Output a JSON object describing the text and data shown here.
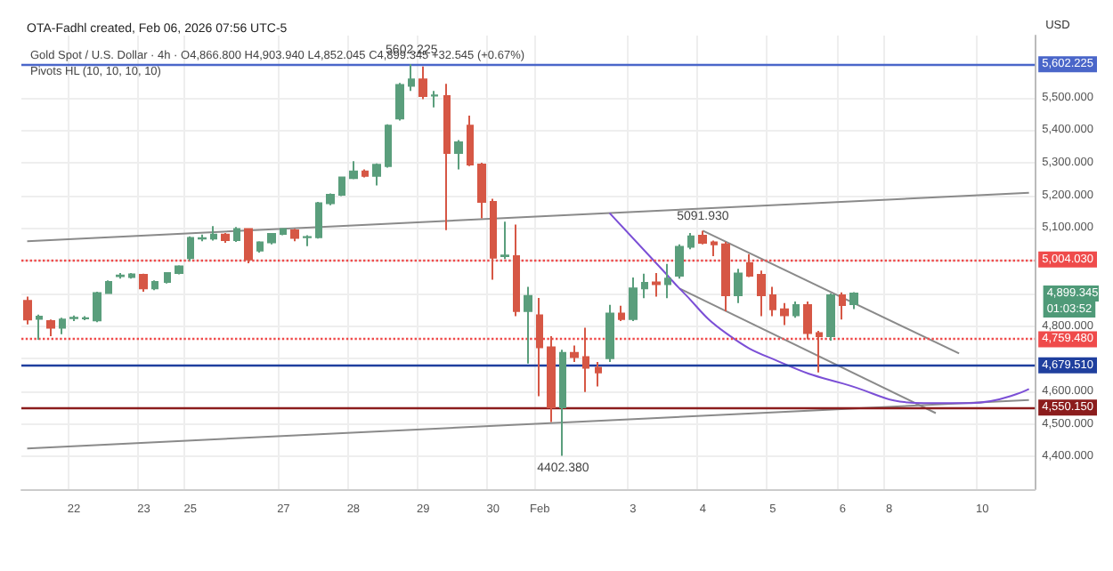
{
  "chart_data": {
    "type": "candlestick",
    "title": "OTA-Fadhl created, Feb 06, 2026 07:56 UTC-5",
    "subtitle": "Gold Spot / U.S. Dollar · 4h · O4,866.800 H4,903.940 L4,852.045 C4,899.345 +32.545 (+0.67%)",
    "ylabel": "USD",
    "annotations": [
      "Pivots HL (10, 10, 10, 10)",
      {
        "text": "5602.225",
        "y": 5602.225
      },
      {
        "text": "5091.930",
        "y": 5091.93
      },
      {
        "text": "4402.380",
        "y": 4402.38
      },
      "4,899.345",
      "01:03:52"
    ],
    "categories": [
      null,
      null,
      null,
      null,
      "22",
      null,
      null,
      null,
      null,
      null,
      "23",
      null,
      null,
      null,
      "25",
      null,
      null,
      null,
      null,
      null,
      null,
      null,
      "27",
      null,
      null,
      null,
      null,
      null,
      "28",
      null,
      null,
      null,
      null,
      null,
      "29",
      null,
      null,
      null,
      null,
      null,
      "30",
      null,
      null,
      null,
      "Feb",
      null,
      null,
      null,
      null,
      null,
      null,
      null,
      "3",
      null,
      null,
      null,
      null,
      null,
      "4",
      null,
      null,
      null,
      null,
      null,
      "5",
      null,
      null,
      null,
      null,
      null,
      "6",
      null,
      null,
      null,
      "8",
      null,
      null,
      null,
      null,
      null,
      null,
      null,
      "10",
      null,
      null,
      null,
      null
    ],
    "ylim": [
      4300,
      5690
    ],
    "yticks": [
      {
        "value": 4400,
        "label": "4,400.000"
      },
      {
        "value": 4500,
        "label": "4,500.000"
      },
      {
        "value": 4600,
        "label": "4,600.000"
      },
      {
        "value": 4700,
        "label": null
      },
      {
        "value": 4800,
        "label": "4,800.000"
      },
      {
        "value": 4900,
        "label": null
      },
      {
        "value": 5000,
        "label": null
      },
      {
        "value": 5100,
        "label": "5,100.000"
      },
      {
        "value": 5200,
        "label": "5,200.000"
      },
      {
        "value": 5300,
        "label": "5,300.000"
      },
      {
        "value": 5400,
        "label": "5,400.000"
      },
      {
        "value": 5500,
        "label": "5,500.000"
      },
      {
        "value": 5600,
        "label": null
      }
    ],
    "grid": true,
    "series": [
      {
        "colors": [
          "#d65745",
          "#5a9e7c",
          "#d65745",
          "#5a9e7c",
          "#5a9e7c",
          "#5a9e7c",
          "#5a9e7c",
          "#5a9e7c",
          "#5a9e7c",
          "#5a9e7c",
          "#d65745",
          "#5a9e7c",
          "#5a9e7c",
          "#5a9e7c",
          "#5a9e7c",
          "#5a9e7c",
          "#5a9e7c",
          "#d65745",
          "#5a9e7c",
          "#d65745",
          "#5a9e7c",
          "#5a9e7c",
          "#5a9e7c",
          "#d65745",
          "#5a9e7c",
          "#5a9e7c",
          "#5a9e7c",
          "#5a9e7c",
          "#5a9e7c",
          "#d65745",
          "#5a9e7c",
          "#5a9e7c",
          "#5a9e7c",
          "#5a9e7c",
          "#d65745",
          "#5a9e7c",
          "#d65745",
          "#5a9e7c",
          "#d65745",
          "#d65745",
          "#d65745",
          "#5a9e7c",
          "#d65745",
          "#5a9e7c",
          "#d65745",
          "#d65745",
          "#5a9e7c",
          "#d65745",
          "#d65745",
          "#d65745",
          "#5a9e7c",
          "#d65745",
          "#5a9e7c",
          "#5a9e7c",
          "#d65745",
          "#5a9e7c",
          "#5a9e7c",
          "#5a9e7c",
          "#d65745",
          "#d65745",
          "#d65745",
          "#5a9e7c",
          "#d65745",
          "#d65745",
          "#d65745",
          "#d65745",
          "#5a9e7c",
          "#d65745",
          "#d65745",
          "#5a9e7c",
          "#d65745",
          "#5a9e7c",
          null,
          null,
          null,
          null,
          null,
          null,
          null,
          null,
          null,
          null,
          null,
          null,
          null,
          null,
          null
        ],
        "ohlc": [
          [
            4877,
            4890,
            4805,
            4820
          ],
          [
            4822,
            4835,
            4758,
            4829
          ],
          [
            4815,
            4820,
            4769,
            4795
          ],
          [
            4795,
            4825,
            4775,
            4820
          ],
          [
            4824,
            4832,
            4815,
            4825
          ],
          [
            4823,
            4830,
            4818,
            4824
          ],
          [
            4817,
            4905,
            4812,
            4901
          ],
          [
            4901,
            4940,
            4898,
            4935
          ],
          [
            4953,
            4962,
            4945,
            4955
          ],
          [
            4950,
            4962,
            4945,
            4958
          ],
          [
            4957,
            4960,
            4905,
            4915
          ],
          [
            4915,
            4940,
            4910,
            4935
          ],
          [
            4935,
            4965,
            4930,
            4962
          ],
          [
            4962,
            4986,
            4958,
            4983
          ],
          [
            5008,
            5075,
            5000,
            5070
          ],
          [
            5068,
            5080,
            5060,
            5069
          ],
          [
            5068,
            5106,
            5062,
            5080
          ],
          [
            5080,
            5085,
            5055,
            5063
          ],
          [
            5063,
            5103,
            5058,
            5097
          ],
          [
            5097,
            5100,
            4992,
            5004
          ],
          [
            5031,
            5060,
            5025,
            5056
          ],
          [
            5056,
            5085,
            5050,
            5082
          ],
          [
            5082,
            5100,
            5078,
            5097
          ],
          [
            5093,
            5098,
            5060,
            5070
          ],
          [
            5072,
            5078,
            5045,
            5073
          ],
          [
            5072,
            5180,
            5068,
            5176
          ],
          [
            5176,
            5206,
            5170,
            5202
          ],
          [
            5202,
            5258,
            5198,
            5255
          ],
          [
            5253,
            5305,
            5250,
            5274
          ],
          [
            5274,
            5280,
            5255,
            5260
          ],
          [
            5260,
            5298,
            5231,
            5294
          ],
          [
            5290,
            5418,
            5285,
            5414
          ],
          [
            5436,
            5545,
            5430,
            5539
          ],
          [
            5536,
            5602.225,
            5520,
            5556
          ],
          [
            5556,
            5595,
            5495,
            5505
          ],
          [
            5506,
            5520,
            5470,
            5507
          ],
          [
            5505,
            5542,
            5094,
            5330
          ],
          [
            5330,
            5370,
            5280,
            5363
          ],
          [
            5414,
            5445,
            5290,
            5295
          ],
          [
            5295,
            5300,
            5130,
            5180
          ],
          [
            5180,
            5190,
            4942,
            5009
          ],
          [
            5014,
            5120,
            5005,
            5016
          ],
          [
            5014,
            5111,
            4830,
            4846
          ],
          [
            4846,
            4920,
            4685,
            4892
          ],
          [
            4833,
            4886,
            4585,
            4735
          ],
          [
            4735,
            4769,
            4506,
            4551
          ],
          [
            4551,
            4727,
            4402.38,
            4718
          ],
          [
            4718,
            4740,
            4690,
            4705
          ],
          [
            4705,
            4795,
            4598,
            4672
          ],
          [
            4672,
            4690,
            4615,
            4658
          ],
          [
            4701,
            4865,
            4690,
            4838
          ],
          [
            4838,
            4862,
            4815,
            4821
          ],
          [
            4821,
            4949,
            4815,
            4915
          ],
          [
            4915,
            4960,
            4885,
            4932
          ],
          [
            4934,
            4962,
            4890,
            4928
          ],
          [
            4928,
            4990,
            4885,
            4945
          ],
          [
            4954,
            5050,
            4945,
            5043
          ],
          [
            5043,
            5085,
            5035,
            5075
          ],
          [
            5077,
            5091.93,
            5050,
            5055
          ],
          [
            5056,
            5062,
            5014,
            5050
          ],
          [
            5050,
            5058,
            4845,
            4894
          ],
          [
            4894,
            4975,
            4870,
            4961
          ],
          [
            4993,
            5020,
            4950,
            4954
          ],
          [
            4957,
            4970,
            4830,
            4894
          ],
          [
            4894,
            4920,
            4830,
            4851
          ],
          [
            4851,
            4870,
            4803,
            4833
          ],
          [
            4833,
            4875,
            4825,
            4864
          ],
          [
            4864,
            4875,
            4759.48,
            4778
          ],
          [
            4778,
            4785,
            4658,
            4769
          ],
          [
            4769,
            4900,
            4755,
            4894
          ],
          [
            4894,
            4903,
            4820,
            4864
          ],
          [
            4866.8,
            4903.94,
            4852.045,
            4899.345
          ],
          null,
          null,
          null,
          null,
          null,
          null,
          null,
          null,
          null,
          null,
          null,
          null,
          null,
          null,
          null
        ]
      },
      {
        "type": "line",
        "color": "#8a8a8a",
        "values": [
          5060,
          null,
          null,
          null,
          null,
          null,
          null,
          null,
          null,
          null,
          null,
          null,
          null,
          null,
          null,
          null,
          null,
          null,
          null,
          null,
          null,
          null,
          null,
          null,
          null,
          null,
          null,
          null,
          null,
          null,
          null,
          null,
          null,
          null,
          null,
          null,
          null,
          null,
          null,
          null,
          null,
          null,
          null,
          null,
          null,
          null,
          null,
          null,
          null,
          null,
          null,
          null,
          null,
          null,
          null,
          null,
          null,
          null,
          null,
          null,
          null,
          null,
          null,
          null,
          null,
          null,
          null,
          null,
          null,
          null,
          null,
          null,
          null,
          null,
          null,
          null,
          null,
          null,
          null,
          null,
          null,
          null,
          null,
          null,
          null,
          null,
          5208
        ]
      },
      {
        "type": "line",
        "color": "#8a8a8a",
        "values": [
          4425,
          null,
          null,
          null,
          null,
          null,
          null,
          null,
          null,
          null,
          null,
          null,
          null,
          null,
          null,
          null,
          null,
          null,
          null,
          null,
          null,
          null,
          null,
          null,
          null,
          null,
          null,
          null,
          null,
          null,
          null,
          null,
          null,
          null,
          null,
          null,
          null,
          null,
          null,
          null,
          null,
          null,
          null,
          null,
          null,
          null,
          null,
          null,
          null,
          null,
          null,
          null,
          null,
          null,
          null,
          null,
          null,
          null,
          null,
          null,
          null,
          null,
          null,
          null,
          null,
          null,
          null,
          null,
          null,
          null,
          null,
          null,
          null,
          null,
          null,
          null,
          null,
          null,
          null,
          null,
          null,
          null,
          null,
          null,
          null,
          null,
          4573
        ]
      },
      {
        "type": "line",
        "color": "#8a8a8a",
        "values": [
          null,
          null,
          null,
          null,
          null,
          null,
          null,
          null,
          null,
          null,
          null,
          null,
          null,
          null,
          null,
          null,
          null,
          null,
          null,
          null,
          null,
          null,
          null,
          null,
          null,
          null,
          null,
          null,
          null,
          null,
          null,
          null,
          null,
          null,
          null,
          null,
          null,
          null,
          null,
          null,
          null,
          null,
          null,
          null,
          null,
          null,
          null,
          null,
          null,
          null,
          null,
          null,
          null,
          null,
          null,
          null,
          null,
          null,
          5092,
          null,
          null,
          null,
          null,
          null,
          null,
          null,
          null,
          null,
          null,
          null,
          null,
          null,
          null,
          null,
          null,
          null,
          null,
          null,
          null,
          null,
          4716,
          null,
          null,
          null,
          null,
          null,
          null
        ]
      },
      {
        "type": "line",
        "color": "#8a8a8a",
        "values": [
          null,
          null,
          null,
          null,
          null,
          null,
          null,
          null,
          null,
          null,
          null,
          null,
          null,
          null,
          null,
          null,
          null,
          null,
          null,
          null,
          null,
          null,
          null,
          null,
          null,
          null,
          null,
          null,
          null,
          null,
          null,
          null,
          null,
          null,
          null,
          null,
          null,
          null,
          null,
          null,
          null,
          null,
          null,
          null,
          null,
          null,
          null,
          null,
          null,
          null,
          null,
          null,
          null,
          null,
          null,
          null,
          4915,
          null,
          null,
          null,
          null,
          null,
          null,
          null,
          null,
          null,
          null,
          null,
          null,
          null,
          null,
          null,
          null,
          null,
          null,
          null,
          null,
          null,
          4533,
          null,
          null,
          null,
          null,
          null,
          null,
          null,
          null
        ]
      },
      {
        "type": "line",
        "color": "#7b4fd6",
        "values": [
          null,
          null,
          null,
          null,
          null,
          null,
          null,
          null,
          null,
          null,
          null,
          null,
          null,
          null,
          null,
          null,
          null,
          null,
          null,
          null,
          null,
          null,
          null,
          null,
          null,
          null,
          null,
          null,
          null,
          null,
          null,
          null,
          null,
          null,
          null,
          null,
          null,
          null,
          null,
          null,
          null,
          null,
          null,
          null,
          null,
          null,
          null,
          null,
          null,
          null,
          5146,
          null,
          null,
          null,
          null,
          4954,
          4915,
          null,
          null,
          null,
          4778,
          null,
          null,
          null,
          null,
          4684,
          null,
          null,
          null,
          null,
          4624,
          null,
          null,
          null,
          null,
          null,
          null,
          4564,
          null,
          null,
          null,
          4564,
          null,
          null,
          null,
          null,
          4607
        ]
      }
    ],
    "ref_lines": [
      {
        "axis": "y",
        "value": 5602.225,
        "label": "5,602.225",
        "color": "#4a66c9",
        "line_style": "solid"
      },
      {
        "axis": "y",
        "value": 5004.03,
        "label": "5,004.030",
        "color": "#ef4b4b",
        "line_style": "dotted"
      },
      {
        "axis": "y",
        "value": 4759.48,
        "label": "4,759.480",
        "color": "#ef4b4b",
        "line_style": "dotted"
      },
      {
        "axis": "y",
        "value": 4679.51,
        "label": "4,679.510",
        "color": "#1f3f9e",
        "line_style": "solid"
      },
      {
        "axis": "y",
        "value": 4550.15,
        "label": "4,550.150",
        "color": "#8b1c1c",
        "line_style": "solid"
      }
    ]
  }
}
